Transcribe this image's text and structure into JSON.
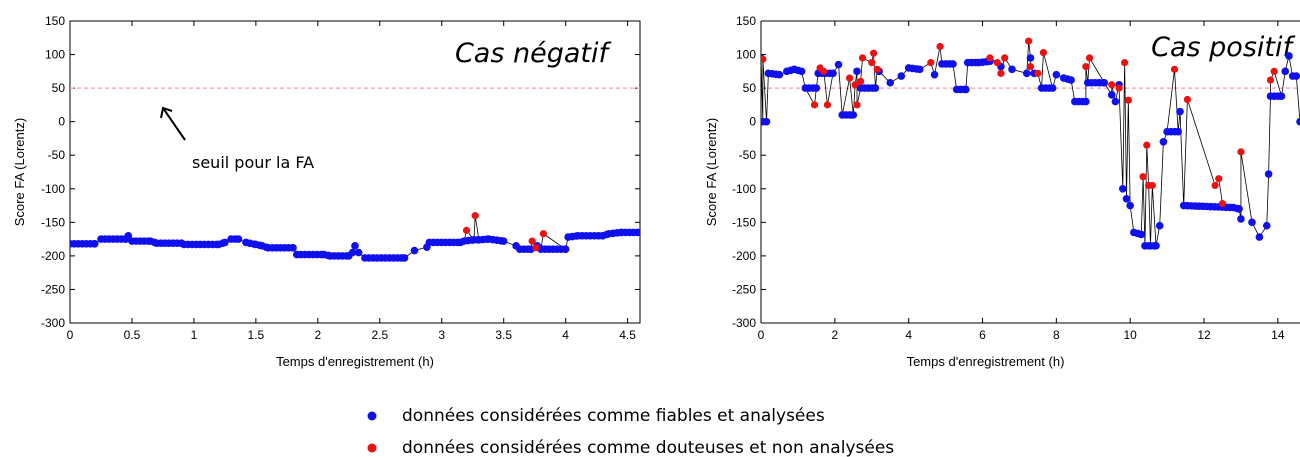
{
  "legend": {
    "items": [
      {
        "label": "données considérées comme fiables et analysées",
        "color": "#1010ee"
      },
      {
        "label": "données considérées comme douteuses et non analysées",
        "color": "#ee1111"
      }
    ]
  },
  "chart_data": [
    {
      "type": "scatter",
      "title": "Cas négatif",
      "xlabel": "Temps d'enregistrement (h)",
      "ylabel": "Score FA (Lorentz)",
      "xlim": [
        0,
        4.6
      ],
      "ylim": [
        -300,
        150
      ],
      "xticks": [
        0,
        0.5,
        1,
        1.5,
        2,
        2.5,
        3,
        3.5,
        4,
        4.5
      ],
      "xtick_labels": [
        "0",
        "0.5",
        "1",
        "1.5",
        "2",
        "2.5",
        "3",
        "3.5",
        "4",
        "4.5"
      ],
      "yticks": [
        150,
        100,
        50,
        0,
        -50,
        -100,
        -150,
        -200,
        -250,
        -300
      ],
      "ytick_labels": [
        "150",
        "100",
        "50",
        "0",
        "-50",
        "-100",
        "-150",
        "-200",
        "-250",
        "-300"
      ],
      "threshold": 50,
      "annotation": "seuil pour la FA",
      "line": true,
      "series": [
        {
          "color": "#1010ee",
          "points": [
            [
              0.0,
              -182
            ],
            [
              0.2,
              -182
            ],
            [
              0.25,
              -175
            ],
            [
              0.45,
              -175
            ],
            [
              0.47,
              -170
            ],
            [
              0.5,
              -178
            ],
            [
              0.65,
              -178
            ],
            [
              0.7,
              -181
            ],
            [
              0.9,
              -181
            ],
            [
              0.92,
              -183
            ],
            [
              1.2,
              -183
            ],
            [
              1.25,
              -180
            ],
            [
              1.3,
              -175
            ],
            [
              1.36,
              -175
            ],
            [
              1.42,
              -180
            ],
            [
              1.5,
              -183
            ],
            [
              1.55,
              -185
            ],
            [
              1.6,
              -188
            ],
            [
              1.8,
              -188
            ],
            [
              1.83,
              -198
            ],
            [
              2.05,
              -198
            ],
            [
              2.1,
              -200
            ],
            [
              2.25,
              -200
            ],
            [
              2.28,
              -195
            ],
            [
              2.3,
              -185
            ],
            [
              2.33,
              -195
            ],
            [
              2.38,
              -203
            ],
            [
              2.7,
              -203
            ],
            [
              2.78,
              -192
            ],
            [
              2.88,
              -187
            ],
            [
              2.9,
              -180
            ],
            [
              3.15,
              -180
            ],
            [
              3.18,
              -178
            ],
            [
              3.26,
              -176
            ],
            [
              3.3,
              -176
            ],
            [
              3.38,
              -175
            ],
            [
              3.5,
              -178
            ],
            [
              3.6,
              -185
            ],
            [
              3.63,
              -190
            ],
            [
              3.72,
              -190
            ],
            [
              3.77,
              -185
            ],
            [
              3.79,
              -188
            ],
            [
              3.8,
              -190
            ],
            [
              4.0,
              -190
            ],
            [
              4.02,
              -172
            ],
            [
              4.1,
              -170
            ],
            [
              4.3,
              -170
            ],
            [
              4.35,
              -167
            ],
            [
              4.45,
              -165
            ],
            [
              4.6,
              -165
            ]
          ]
        },
        {
          "color": "#ee1111",
          "points": [
            [
              3.2,
              -162
            ],
            [
              3.27,
              -140
            ],
            [
              3.73,
              -178
            ],
            [
              3.76,
              -188
            ],
            [
              3.82,
              -167
            ]
          ]
        }
      ]
    },
    {
      "type": "scatter",
      "title": "Cas positif",
      "xlabel": "Temps d'enregistrement (h)",
      "ylabel": "Score FA (Lorentz)",
      "xlim": [
        0,
        14.6
      ],
      "ylim": [
        -300,
        150
      ],
      "xticks": [
        0,
        2,
        4,
        6,
        8,
        10,
        12,
        14
      ],
      "xtick_labels": [
        "0",
        "2",
        "4",
        "6",
        "8",
        "10",
        "12",
        "14"
      ],
      "yticks": [
        150,
        100,
        50,
        0,
        -50,
        -100,
        -150,
        -200,
        -250,
        -300
      ],
      "ytick_labels": [
        "150",
        "100",
        "50",
        "0",
        "-50",
        "-100",
        "-150",
        "-200",
        "-250",
        "-300"
      ],
      "threshold": 50,
      "line": true,
      "series": [
        {
          "color": "#1010ee",
          "points": [
            [
              0.0,
              95
            ],
            [
              0.05,
              0
            ],
            [
              0.15,
              0
            ],
            [
              0.2,
              72
            ],
            [
              0.5,
              70
            ],
            [
              0.7,
              75
            ],
            [
              0.9,
              78
            ],
            [
              1.1,
              75
            ],
            [
              1.2,
              50
            ],
            [
              1.5,
              50
            ],
            [
              1.55,
              72
            ],
            [
              1.95,
              72
            ],
            [
              2.1,
              85
            ],
            [
              2.2,
              10
            ],
            [
              2.5,
              10
            ],
            [
              2.6,
              75
            ],
            [
              2.7,
              50
            ],
            [
              3.1,
              50
            ],
            [
              3.2,
              75
            ],
            [
              3.5,
              58
            ],
            [
              3.8,
              68
            ],
            [
              4.0,
              80
            ],
            [
              4.3,
              78
            ],
            [
              4.7,
              70
            ],
            [
              4.9,
              86
            ],
            [
              5.2,
              86
            ],
            [
              5.3,
              48
            ],
            [
              5.55,
              48
            ],
            [
              5.6,
              88
            ],
            [
              5.9,
              88
            ],
            [
              6.2,
              90
            ],
            [
              6.5,
              82
            ],
            [
              6.8,
              78
            ],
            [
              7.2,
              72
            ],
            [
              7.3,
              95
            ],
            [
              7.4,
              72
            ],
            [
              7.6,
              50
            ],
            [
              7.9,
              50
            ],
            [
              8.0,
              70
            ],
            [
              8.2,
              65
            ],
            [
              8.4,
              62
            ],
            [
              8.5,
              30
            ],
            [
              8.8,
              30
            ],
            [
              8.85,
              58
            ],
            [
              9.3,
              58
            ],
            [
              9.5,
              40
            ],
            [
              9.6,
              30
            ],
            [
              9.7,
              55
            ],
            [
              9.8,
              -100
            ],
            [
              9.9,
              -115
            ],
            [
              10.0,
              -125
            ],
            [
              10.1,
              -165
            ],
            [
              10.3,
              -168
            ],
            [
              10.4,
              -185
            ],
            [
              10.55,
              -185
            ],
            [
              10.7,
              -185
            ],
            [
              10.8,
              -155
            ],
            [
              10.9,
              -30
            ],
            [
              11.0,
              -15
            ],
            [
              11.3,
              -15
            ],
            [
              11.35,
              15
            ],
            [
              11.45,
              -125
            ],
            [
              12.8,
              -128
            ],
            [
              12.95,
              -130
            ],
            [
              13.0,
              -145
            ],
            [
              13.3,
              -150
            ],
            [
              13.5,
              -172
            ],
            [
              13.7,
              -155
            ],
            [
              13.75,
              -78
            ],
            [
              13.8,
              38
            ],
            [
              14.1,
              38
            ],
            [
              14.2,
              75
            ],
            [
              14.3,
              98
            ],
            [
              14.4,
              68
            ],
            [
              14.5,
              68
            ],
            [
              14.6,
              0
            ]
          ]
        },
        {
          "color": "#ee1111",
          "points": [
            [
              0.05,
              93
            ],
            [
              1.45,
              25
            ],
            [
              1.6,
              80
            ],
            [
              1.7,
              75
            ],
            [
              1.8,
              25
            ],
            [
              2.4,
              65
            ],
            [
              2.55,
              55
            ],
            [
              2.6,
              25
            ],
            [
              2.7,
              60
            ],
            [
              2.75,
              95
            ],
            [
              3.0,
              88
            ],
            [
              3.05,
              102
            ],
            [
              3.15,
              78
            ],
            [
              4.6,
              88
            ],
            [
              4.85,
              112
            ],
            [
              6.2,
              95
            ],
            [
              6.4,
              88
            ],
            [
              6.5,
              72
            ],
            [
              6.6,
              95
            ],
            [
              7.25,
              120
            ],
            [
              7.3,
              82
            ],
            [
              7.5,
              72
            ],
            [
              7.65,
              103
            ],
            [
              8.8,
              82
            ],
            [
              8.9,
              95
            ],
            [
              9.5,
              55
            ],
            [
              9.7,
              50
            ],
            [
              9.85,
              88
            ],
            [
              9.95,
              32
            ],
            [
              10.35,
              -82
            ],
            [
              10.45,
              -35
            ],
            [
              10.5,
              -95
            ],
            [
              10.6,
              -95
            ],
            [
              11.2,
              78
            ],
            [
              11.55,
              33
            ],
            [
              12.3,
              -95
            ],
            [
              12.4,
              -85
            ],
            [
              12.5,
              -122
            ],
            [
              13.0,
              -45
            ],
            [
              13.8,
              62
            ],
            [
              13.9,
              75
            ]
          ]
        }
      ]
    }
  ]
}
